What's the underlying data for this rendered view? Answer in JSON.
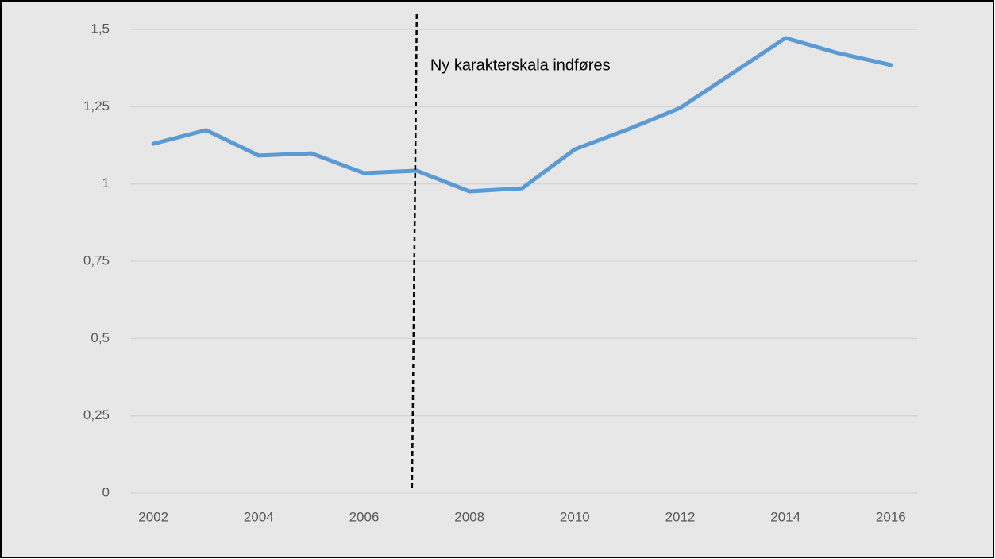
{
  "chart_data": {
    "type": "line",
    "x": [
      2002,
      2003,
      2004,
      2005,
      2006,
      2007,
      2008,
      2009,
      2010,
      2011,
      2012,
      2013,
      2014,
      2015,
      2016
    ],
    "values": [
      1.13,
      1.174,
      1.092,
      1.099,
      1.035,
      1.043,
      0.976,
      0.986,
      1.112,
      1.176,
      1.246,
      1.359,
      1.472,
      1.423,
      1.385
    ],
    "color": "#5b9bd5",
    "xlim": [
      2001.5,
      2016.5
    ],
    "xticks": [
      2002,
      2004,
      2006,
      2008,
      2010,
      2012,
      2014,
      2016
    ],
    "ylim": [
      0,
      1.5
    ],
    "yticks": [
      0,
      {
        "value": 0.25,
        "label": "0,25"
      },
      {
        "value": 0.5,
        "label": "0,5"
      },
      {
        "value": 0.75,
        "label": "0,75"
      },
      1,
      {
        "value": 1.25,
        "label": "1,25"
      },
      {
        "value": 1.5,
        "label": "1,5"
      }
    ],
    "grid": true,
    "annotation": {
      "text": "Ny karakterskala indføres",
      "x": 2007
    }
  }
}
